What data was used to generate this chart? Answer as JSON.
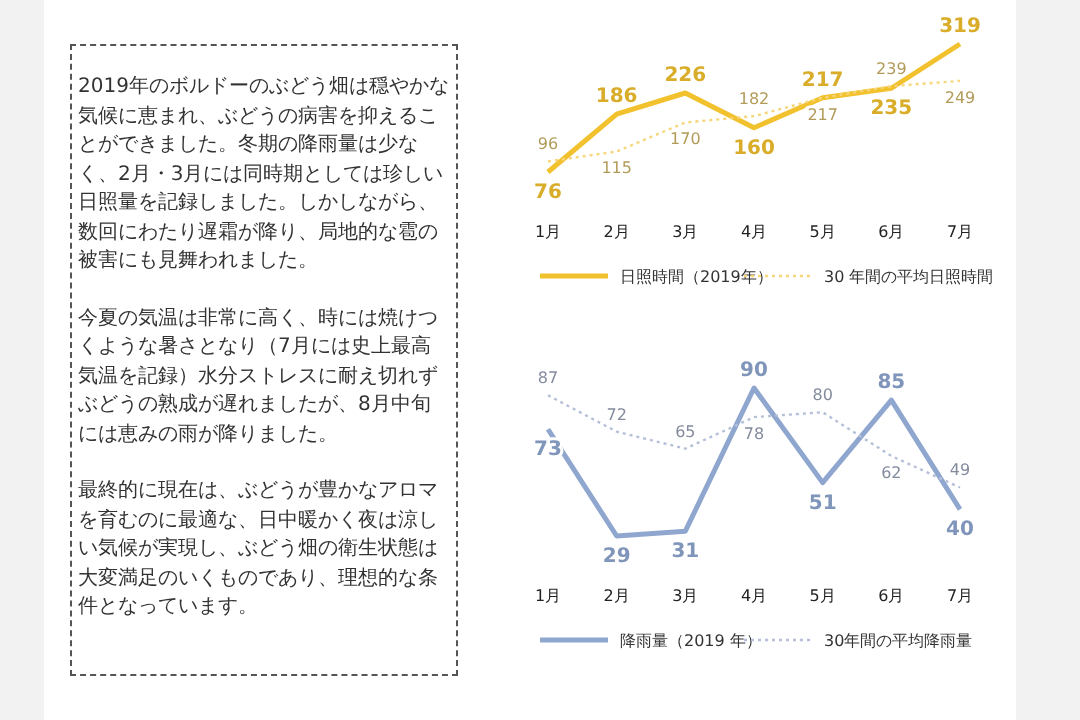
{
  "chart_data": [
    {
      "type": "other",
      "annotations": [
        "2019年のボルドーのぶどう畑は穏やかな気候に恵まれ、ぶどうの病害を抑えることができました。冬期の降雨量は少なく、2月・3月には同時期としては珍しい日照量を記録しました。しかしながら、数回にわたり遅霜が降り、局地的な雹の被害にも見舞われました。",
        "今夏の気温は非常に高く、時には焼けつくような暑さとなり（7月には史上最高気温を記録）水分ストレスに耐え切れずぶどうの熟成が遅れましたが、8月中旬には恵みの雨が降りました。",
        "最終的に現在は、ぶどうが豊かなアロマを育むのに最適な、日中暖かく夜は涼しい気候が実現し、ぶどう畑の衛生状態は大変満足のいくものであり、理想的な条件となっています。"
      ]
    },
    {
      "type": "line",
      "categories": [
        "1月",
        "2月",
        "3月",
        "4月",
        "5月",
        "6月",
        "7月"
      ],
      "data_labels": true,
      "legend": "bottom",
      "series": [
        {
          "name": "日照時間（2019年）",
          "color": "#f2c12e",
          "line_style": "solid",
          "values": [
            76,
            186,
            226,
            160,
            217,
            235,
            319
          ]
        },
        {
          "name": "30 年間の平均日照時間",
          "color": "#f5d67a",
          "line_style": "dotted",
          "values": [
            96,
            115,
            170,
            182,
            217,
            239,
            249
          ]
        }
      ]
    },
    {
      "type": "line",
      "categories": [
        "1月",
        "2月",
        "3月",
        "4月",
        "5月",
        "6月",
        "7月"
      ],
      "data_labels": true,
      "legend": "bottom",
      "series": [
        {
          "name": "降雨量（2019 年）",
          "color": "#8fa6cf",
          "line_style": "solid",
          "values": [
            73,
            29,
            31,
            90,
            51,
            85,
            40
          ]
        },
        {
          "name": "30年間の平均降雨量",
          "color": "#b5c0d8",
          "line_style": "dotted",
          "values": [
            87,
            72,
            65,
            78,
            80,
            62,
            49
          ]
        }
      ]
    }
  ]
}
